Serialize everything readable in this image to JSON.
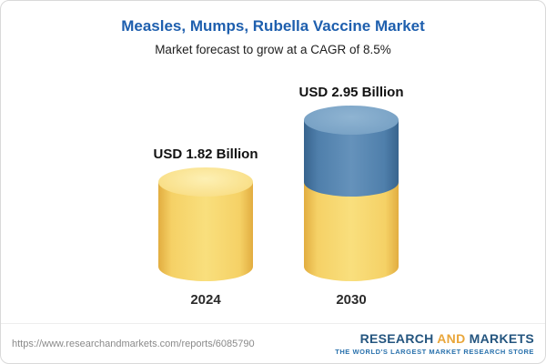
{
  "header": {
    "title": "Measles, Mumps, Rubella Vaccine Market",
    "subtitle": "Market forecast to grow at a CAGR of 8.5%"
  },
  "chart_data": {
    "type": "bar",
    "bar_style": "cylinder",
    "categories": [
      "2024",
      "2030"
    ],
    "values": [
      1.82,
      2.95
    ],
    "value_labels": [
      "USD 1.82 Billion",
      "USD 2.95 Billion"
    ],
    "unit": "USD Billion",
    "title": "Measles, Mumps, Rubella Vaccine Market",
    "subtitle": "Market forecast to grow at a CAGR of 8.5%",
    "cagr": "8.5%",
    "ylim": [
      0,
      3.2
    ],
    "legend": "none",
    "grid": false,
    "colors": {
      "base_segment": "#F5D166",
      "growth_segment": "#4F7FAB",
      "title_blue": "#1E5FAE",
      "logo_blue": "#24557F",
      "logo_gold": "#E9A63A"
    }
  },
  "footer": {
    "url": "https://www.researchandmarkets.com/reports/6085790",
    "logo": {
      "part1": "RESEARCH ",
      "part2": "AND",
      "part3": " MARKETS",
      "tagline": "THE WORLD'S LARGEST MARKET RESEARCH STORE"
    }
  }
}
